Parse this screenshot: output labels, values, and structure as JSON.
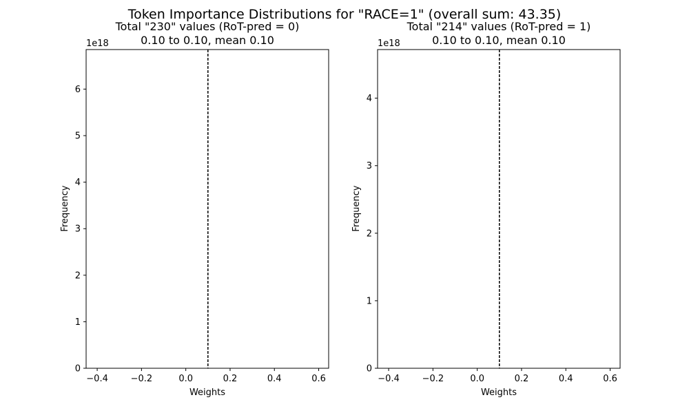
{
  "figure": {
    "suptitle": "Token Importance Distributions for \"RACE=1\" (overall  sum: 43.35)"
  },
  "chart_data": [
    {
      "type": "histogram",
      "title_line1": "Total \"230\" values (RoT-pred = 0)",
      "title_line2": "0.10 to 0.10, mean 0.10",
      "xlabel": "Weights",
      "ylabel": "Frequency",
      "y_offset_label": "1e18",
      "xlim": [
        -0.45,
        0.645
      ],
      "ylim": [
        0,
        6.85
      ],
      "x_ticks": [
        -0.4,
        -0.2,
        0.0,
        0.2,
        0.4,
        0.6
      ],
      "x_tick_labels": [
        "−0.4",
        "−0.2",
        "0.0",
        "0.2",
        "0.4",
        "0.6"
      ],
      "y_ticks": [
        0,
        1,
        2,
        3,
        4,
        5,
        6
      ],
      "y_tick_labels": [
        "0",
        "1",
        "2",
        "3",
        "4",
        "5",
        "6"
      ],
      "mean_line": 0.1,
      "grid": false
    },
    {
      "type": "histogram",
      "title_line1": "Total \"214\" values (RoT-pred = 1)",
      "title_line2": "0.10 to 0.10, mean 0.10",
      "xlabel": "Weights",
      "ylabel": "Frequency",
      "y_offset_label": "1e18",
      "xlim": [
        -0.45,
        0.645
      ],
      "ylim": [
        0,
        4.72
      ],
      "x_ticks": [
        -0.4,
        -0.2,
        0.0,
        0.2,
        0.4,
        0.6
      ],
      "x_tick_labels": [
        "−0.4",
        "−0.2",
        "0.0",
        "0.2",
        "0.4",
        "0.6"
      ],
      "y_ticks": [
        0,
        1,
        2,
        3,
        4
      ],
      "y_tick_labels": [
        "0",
        "1",
        "2",
        "3",
        "4"
      ],
      "mean_line": 0.1,
      "grid": false
    }
  ]
}
